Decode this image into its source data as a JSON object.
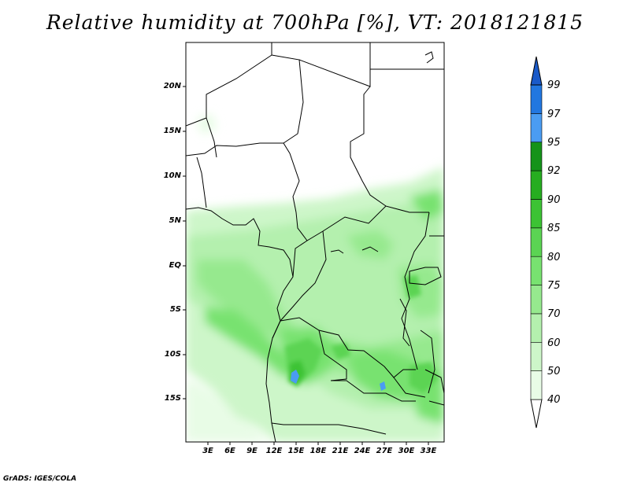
{
  "title": "Relative humidity at 700hPa [%], VT: 2018121815",
  "footer": "GrADS: IGES/COLA",
  "map": {
    "lat_labels": [
      "20N",
      "15N",
      "10N",
      "5N",
      "EQ",
      "5S",
      "10S",
      "15S"
    ],
    "lon_labels": [
      "3E",
      "6E",
      "9E",
      "12E",
      "15E",
      "18E",
      "21E",
      "24E",
      "27E",
      "30E",
      "33E"
    ]
  },
  "colorbar": {
    "levels": [
      "40",
      "50",
      "60",
      "70",
      "75",
      "80",
      "85",
      "90",
      "92",
      "95",
      "97",
      "99"
    ],
    "colors": [
      "#ffffff",
      "#e8fce6",
      "#cdf6c9",
      "#b4f0ae",
      "#96e98e",
      "#78e270",
      "#5bd453",
      "#3cc334",
      "#26ad20",
      "#15931a",
      "#4a9cf2",
      "#2277e0",
      "#1a5ac9"
    ]
  }
}
